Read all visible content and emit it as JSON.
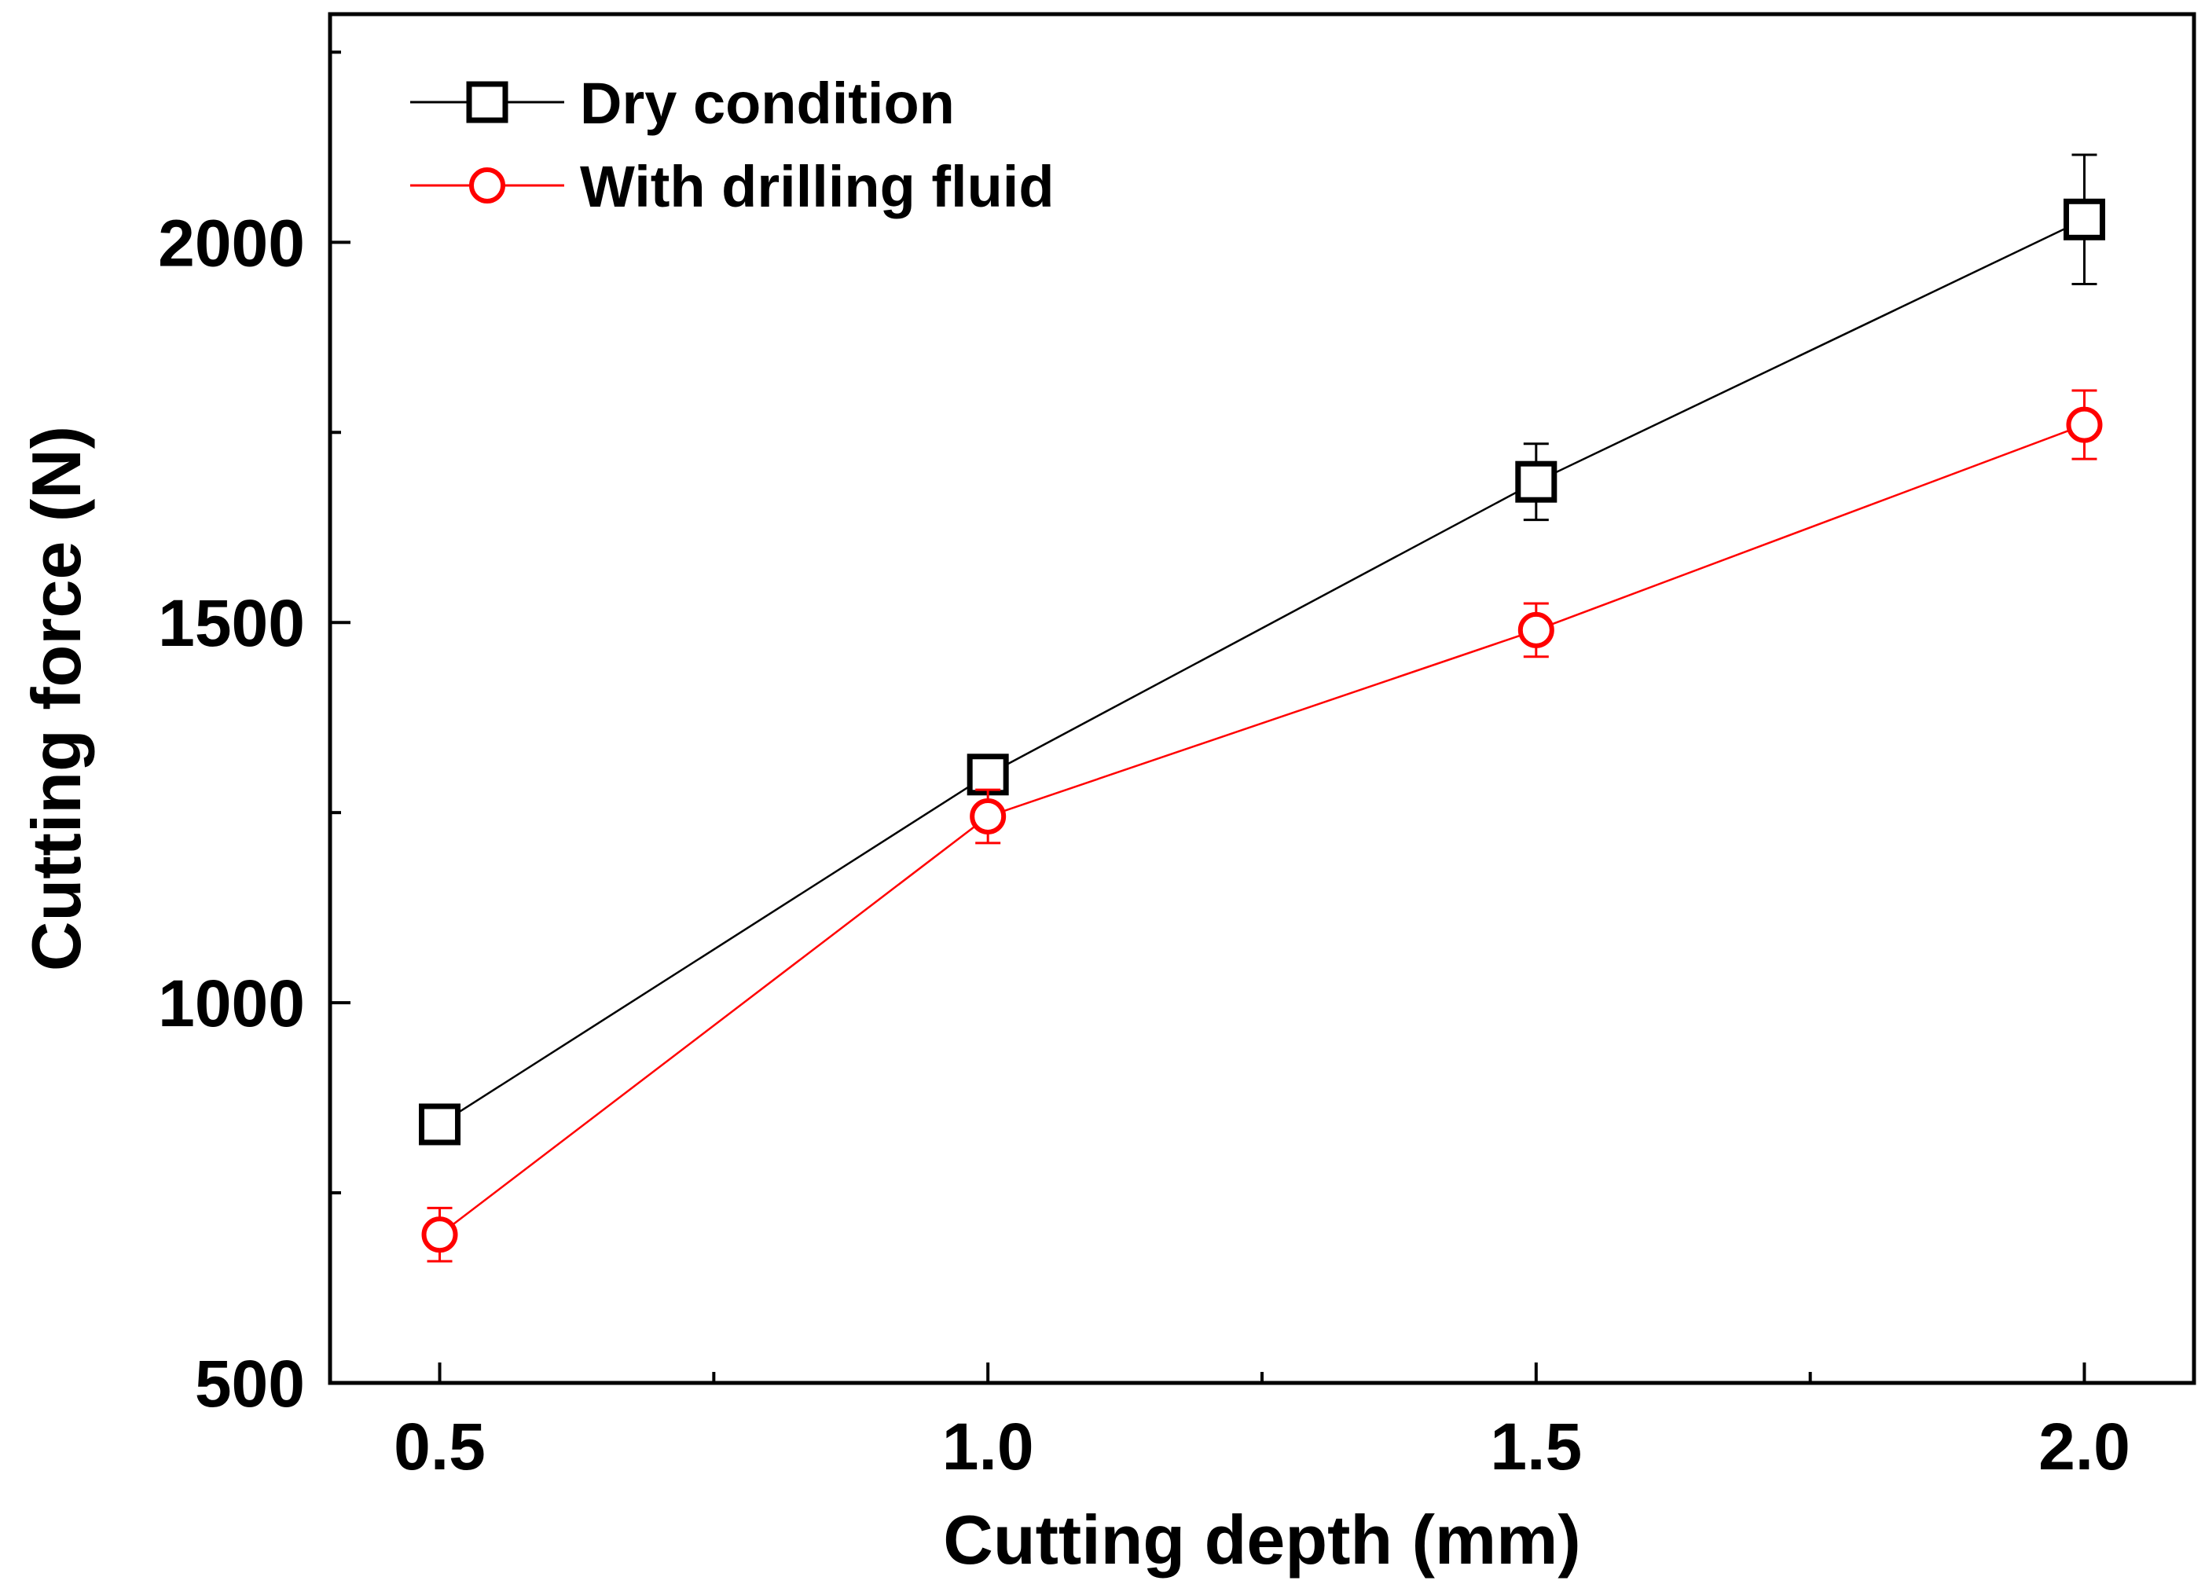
{
  "chart_data": {
    "type": "line",
    "title": "",
    "xlabel": "Cutting depth (mm)",
    "ylabel": "Cutting force (N)",
    "x": [
      0.5,
      1.0,
      1.5,
      2.0
    ],
    "xlim": [
      0.4,
      2.1
    ],
    "ylim": [
      500,
      2300
    ],
    "x_ticks": [
      0.5,
      1.0,
      1.5,
      2.0
    ],
    "x_tick_labels": [
      "0.5",
      "1.0",
      "1.5",
      "2.0"
    ],
    "x_minor_ticks": [
      0.75,
      1.25,
      1.75
    ],
    "y_ticks": [
      500,
      1000,
      1500,
      2000
    ],
    "y_tick_labels": [
      "500",
      "1000",
      "1500",
      "2000"
    ],
    "y_minor_ticks": [
      750,
      1250,
      1750,
      2250
    ],
    "grid": false,
    "legend_position": "top-left",
    "series": [
      {
        "name": "Dry condition",
        "marker": "square",
        "color": "#000000",
        "values": [
          840,
          1300,
          1685,
          2030
        ],
        "errors": [
          0,
          25,
          50,
          85
        ]
      },
      {
        "name": "With drilling fluid",
        "marker": "circle",
        "color": "#ff0000",
        "values": [
          695,
          1245,
          1490,
          1760
        ],
        "errors": [
          35,
          35,
          35,
          45
        ]
      }
    ]
  }
}
